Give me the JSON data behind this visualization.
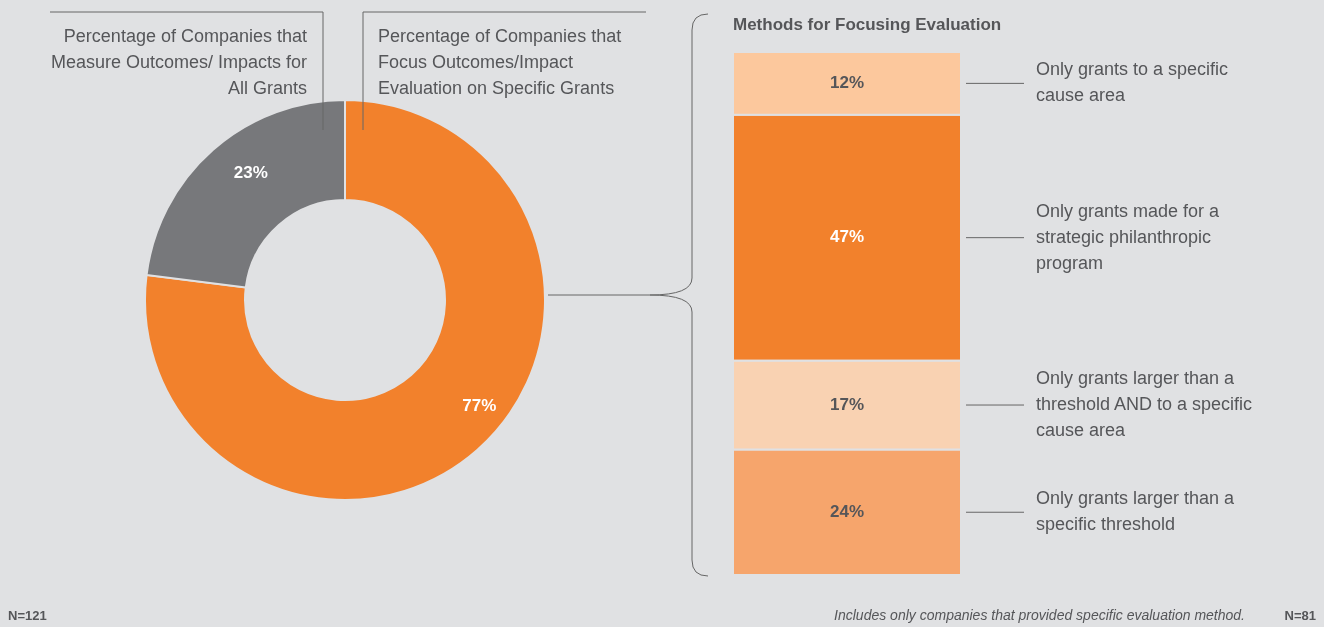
{
  "chart_data": [
    {
      "type": "donut",
      "categories": [
        "Percentage of Companies that Focus Outcomes/Impact Evaluation on Specific Grants",
        "Percentage of Companies that Measure Outcomes/ Impacts for All Grants"
      ],
      "values": [
        77,
        23
      ],
      "colors": [
        "#f2812c",
        "#77787b"
      ],
      "value_labels": [
        "77%",
        "23%"
      ],
      "annotations": [
        "N=121"
      ]
    },
    {
      "type": "bar",
      "stacked": true,
      "title": "Methods for Focusing Evaluation",
      "categories": [
        null
      ],
      "legend": "right",
      "series": [
        {
          "name": "Only grants larger than a specific threshold",
          "color": "#f6a56c",
          "values": [
            24
          ],
          "value_labels": [
            "24%"
          ]
        },
        {
          "name": "Only grants larger than a threshold AND to a specific cause area",
          "color": "#f9d2b2",
          "values": [
            17
          ],
          "value_labels": [
            "17%"
          ]
        },
        {
          "name": "Only grants made for a strategic philanthropic program",
          "color": "#f2812c",
          "values": [
            47
          ],
          "value_labels": [
            "47%"
          ]
        },
        {
          "name": "Only grants to a specific cause area",
          "color": "#fcc89d",
          "values": [
            12
          ],
          "value_labels": [
            "12%"
          ]
        }
      ],
      "annotations": [
        "Includes only companies that provided specific evaluation method.",
        "N=81"
      ]
    }
  ]
}
